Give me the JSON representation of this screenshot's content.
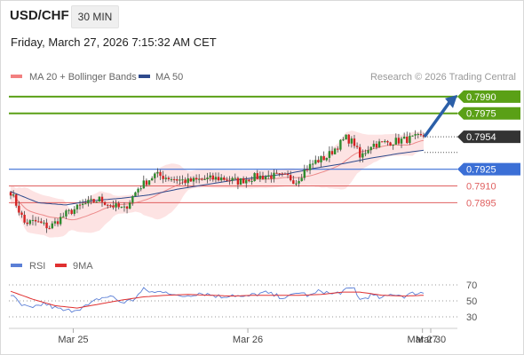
{
  "header": {
    "symbol": "USD/CHF",
    "timeframe": "30 MIN",
    "datetime": "Friday, March 27, 2026 7:15:32 AM CET"
  },
  "legend": {
    "ma20_label": "MA 20 + Bollinger Bands",
    "ma50_label": "MA 50",
    "ma20_color": "#f28080",
    "ma50_color": "#2e4a8c",
    "copyright": "Research © 2026 Trading Central"
  },
  "colors": {
    "resistance": "#5aa016",
    "support": "#3b6fd6",
    "support_minor": "#e06060",
    "current": "#333333",
    "arrow": "#2b5fa8",
    "candle_up": "#2e8b2e",
    "candle_down": "#d32222",
    "bollinger_fill": "#fde3e3",
    "rsi_line": "#5b7fd6",
    "rsi_ma_line": "#e03030"
  },
  "chart_data": [
    {
      "type": "candlestick",
      "ylim": [
        0.7858,
        0.8001
      ],
      "levels": [
        {
          "label": "0.7990",
          "value": 0.799,
          "kind": "resistance"
        },
        {
          "label": "0.7975",
          "value": 0.7975,
          "kind": "resistance"
        },
        {
          "label": "0.7954",
          "value": 0.7954,
          "kind": "current"
        },
        {
          "label": "0.7925",
          "value": 0.7925,
          "kind": "support"
        },
        {
          "label": "0.7910",
          "value": 0.791,
          "kind": "support_minor"
        },
        {
          "label": "0.7895",
          "value": 0.7895,
          "kind": "support_minor"
        }
      ],
      "x_ticks": [
        "Mar 25",
        "Mar 26",
        "Mar 27",
        "Mar 30"
      ],
      "price_path": [
        [
          0,
          0.7905
        ],
        [
          5,
          0.7877
        ],
        [
          9,
          0.7878
        ],
        [
          14,
          0.7873
        ],
        [
          20,
          0.7885
        ],
        [
          26,
          0.7893
        ],
        [
          32,
          0.7898
        ],
        [
          36,
          0.7893
        ],
        [
          41,
          0.7889
        ],
        [
          46,
          0.7908
        ],
        [
          52,
          0.792
        ],
        [
          58,
          0.7917
        ],
        [
          64,
          0.7914
        ],
        [
          70,
          0.7916
        ],
        [
          76,
          0.7917
        ],
        [
          82,
          0.7914
        ],
        [
          88,
          0.7918
        ],
        [
          94,
          0.7919
        ],
        [
          100,
          0.7918
        ],
        [
          103,
          0.7914
        ],
        [
          106,
          0.7924
        ],
        [
          110,
          0.7932
        ],
        [
          114,
          0.7936
        ],
        [
          118,
          0.7946
        ],
        [
          121,
          0.7953
        ],
        [
          124,
          0.7948
        ],
        [
          126,
          0.7935
        ],
        [
          130,
          0.7947
        ],
        [
          136,
          0.7949
        ],
        [
          141,
          0.7951
        ],
        [
          146,
          0.7953
        ],
        [
          149,
          0.7954
        ]
      ],
      "ma50": [
        [
          0,
          0.7905
        ],
        [
          10,
          0.7895
        ],
        [
          20,
          0.7893
        ],
        [
          30,
          0.7897
        ],
        [
          40,
          0.7899
        ],
        [
          50,
          0.7902
        ],
        [
          60,
          0.7907
        ],
        [
          70,
          0.7911
        ],
        [
          80,
          0.7915
        ],
        [
          90,
          0.7918
        ],
        [
          100,
          0.7921
        ],
        [
          110,
          0.7926
        ],
        [
          120,
          0.793
        ],
        [
          130,
          0.7935
        ],
        [
          140,
          0.7939
        ],
        [
          149,
          0.7942
        ]
      ],
      "forecast_arrow": {
        "from": 0.7954,
        "to": 0.7986
      }
    },
    {
      "type": "line",
      "title": "RSI",
      "series": [
        {
          "name": "RSI"
        },
        {
          "name": "9MA"
        }
      ],
      "yticks": [
        "70",
        "50",
        "30"
      ],
      "ylim": [
        20,
        80
      ],
      "rsi": [
        [
          0,
          58
        ],
        [
          4,
          44
        ],
        [
          8,
          40
        ],
        [
          12,
          47
        ],
        [
          16,
          41
        ],
        [
          20,
          37
        ],
        [
          24,
          40
        ],
        [
          28,
          44
        ],
        [
          32,
          53
        ],
        [
          36,
          56
        ],
        [
          40,
          48
        ],
        [
          44,
          51
        ],
        [
          48,
          64
        ],
        [
          52,
          60
        ],
        [
          56,
          63
        ],
        [
          60,
          55
        ],
        [
          64,
          57
        ],
        [
          68,
          60
        ],
        [
          72,
          58
        ],
        [
          76,
          55
        ],
        [
          80,
          58
        ],
        [
          84,
          54
        ],
        [
          88,
          58
        ],
        [
          92,
          60
        ],
        [
          96,
          56
        ],
        [
          100,
          54
        ],
        [
          104,
          61
        ],
        [
          108,
          56
        ],
        [
          112,
          63
        ],
        [
          116,
          58
        ],
        [
          120,
          62
        ],
        [
          124,
          66
        ],
        [
          126,
          51
        ],
        [
          130,
          57
        ],
        [
          134,
          53
        ],
        [
          138,
          59
        ],
        [
          142,
          56
        ],
        [
          146,
          60
        ],
        [
          149,
          60
        ]
      ],
      "rsi_ma": [
        [
          0,
          62
        ],
        [
          8,
          52
        ],
        [
          16,
          44
        ],
        [
          24,
          41
        ],
        [
          32,
          46
        ],
        [
          40,
          51
        ],
        [
          48,
          55
        ],
        [
          56,
          57
        ],
        [
          64,
          58
        ],
        [
          72,
          57
        ],
        [
          80,
          56
        ],
        [
          88,
          57
        ],
        [
          96,
          57
        ],
        [
          104,
          57
        ],
        [
          112,
          58
        ],
        [
          120,
          61
        ],
        [
          126,
          61
        ],
        [
          134,
          57
        ],
        [
          142,
          56
        ],
        [
          149,
          57
        ]
      ]
    }
  ]
}
